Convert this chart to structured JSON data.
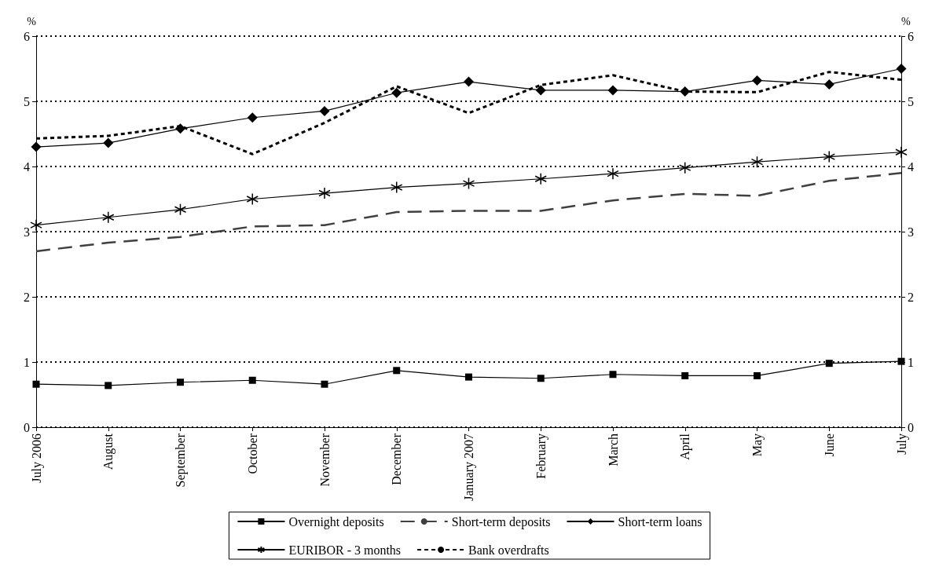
{
  "chart_data": {
    "type": "line",
    "ylabel": "%",
    "y2label": "%",
    "categories": [
      "July 2006",
      "August",
      "September",
      "October",
      "November",
      "December",
      "January 2007",
      "February",
      "March",
      "April",
      "May",
      "June",
      "July"
    ],
    "series": [
      {
        "name": "Overnight deposits",
        "color": "#000000",
        "marker": "square",
        "line_style": "solid",
        "values": [
          0.66,
          0.64,
          0.69,
          0.72,
          0.66,
          0.87,
          0.77,
          0.75,
          0.81,
          0.79,
          0.79,
          0.98,
          1.01
        ]
      },
      {
        "name": "Short-term deposits",
        "color": "#404040",
        "marker": "none",
        "line_style": "dashed",
        "values": [
          2.7,
          2.83,
          2.92,
          3.08,
          3.1,
          3.3,
          3.32,
          3.32,
          3.48,
          3.58,
          3.55,
          3.78,
          3.9
        ]
      },
      {
        "name": "Short-term loans",
        "color": "#000000",
        "marker": "diamond",
        "line_style": "solid",
        "values": [
          4.3,
          4.36,
          4.58,
          4.75,
          4.85,
          5.13,
          5.3,
          5.17,
          5.17,
          5.15,
          5.32,
          5.26,
          5.5
        ]
      },
      {
        "name": "EURIBOR - 3 months",
        "color": "#000000",
        "marker": "cross",
        "line_style": "solid",
        "values": [
          3.1,
          3.22,
          3.34,
          3.5,
          3.59,
          3.68,
          3.74,
          3.81,
          3.89,
          3.98,
          4.07,
          4.15,
          4.22
        ]
      },
      {
        "name": "Bank overdrafts",
        "color": "#000000",
        "marker": "none",
        "line_style": "dotted",
        "values": [
          4.43,
          4.47,
          4.62,
          4.19,
          4.67,
          5.23,
          4.82,
          5.25,
          5.4,
          5.15,
          5.14,
          5.45,
          5.33
        ]
      }
    ],
    "ylim": [
      0,
      6
    ],
    "yticks": [
      0,
      1,
      2,
      3,
      4,
      5,
      6
    ],
    "y2lim": [
      0,
      6
    ],
    "y2ticks": [
      0,
      1,
      2,
      3,
      4,
      5,
      6
    ],
    "grid": "y",
    "legend": "bottom"
  }
}
